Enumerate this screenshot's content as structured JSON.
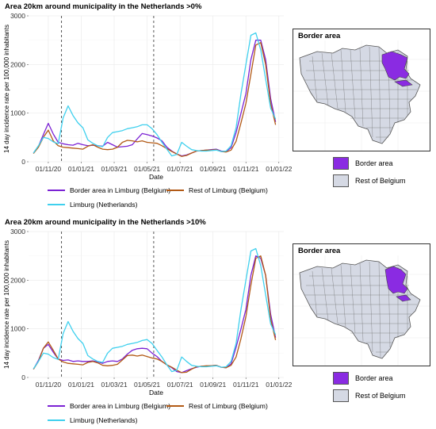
{
  "colors": {
    "border_area": "#7b22d4",
    "rest_limburg": "#b25a16",
    "limburg_nl": "#3fd0ee",
    "map_fill": "#d5d9e4",
    "map_highlight": "#8a2be2"
  },
  "chart_data": [
    {
      "type": "line",
      "title": "Area 20km around municipality in the Netherlands >0%",
      "xlabel": "Date",
      "ylabel": "14 day incidence rate per 100,000 inhabitants",
      "ylim": [
        0,
        3000
      ],
      "yticks": [
        0,
        1000,
        2000,
        3000
      ],
      "xticks": [
        "01/11/20",
        "01/01/21",
        "01/03/21",
        "01/05/21",
        "01/07/21",
        "01/09/21",
        "01/11/21",
        "01/01/22"
      ],
      "xtick_positions": [
        0,
        2,
        4,
        6,
        8,
        10,
        12,
        14
      ],
      "xlim": [
        -1.2,
        14.3
      ],
      "vlines": [
        0.8,
        6.4
      ],
      "x": [
        -0.9,
        -0.6,
        -0.3,
        0,
        0.3,
        0.6,
        0.9,
        1.2,
        1.5,
        1.8,
        2.1,
        2.4,
        2.7,
        3,
        3.3,
        3.6,
        3.9,
        4.2,
        4.5,
        4.8,
        5.1,
        5.4,
        5.7,
        6,
        6.3,
        6.6,
        6.9,
        7.2,
        7.5,
        7.8,
        8.1,
        8.4,
        8.7,
        9,
        9.3,
        9.6,
        9.9,
        10.2,
        10.5,
        10.8,
        11.1,
        11.4,
        11.7,
        12,
        12.3,
        12.6,
        12.9,
        13.2,
        13.5,
        13.8
      ],
      "series": [
        {
          "name": "Border area in Limburg (Belgium)",
          "values": [
            180,
            320,
            560,
            790,
            570,
            400,
            370,
            350,
            340,
            380,
            350,
            330,
            340,
            330,
            320,
            400,
            350,
            300,
            310,
            320,
            350,
            470,
            580,
            560,
            530,
            490,
            430,
            300,
            220,
            160,
            120,
            140,
            180,
            220,
            230,
            240,
            250,
            260,
            220,
            210,
            290,
            600,
            1000,
            1400,
            2100,
            2500,
            2500,
            2100,
            1300,
            820
          ]
        },
        {
          "name": "Rest of Limburg (Belgium)",
          "values": [
            170,
            300,
            500,
            650,
            430,
            330,
            300,
            290,
            280,
            270,
            260,
            320,
            350,
            300,
            260,
            250,
            260,
            300,
            400,
            440,
            430,
            410,
            430,
            400,
            390,
            380,
            330,
            270,
            210,
            160,
            110,
            130,
            180,
            220,
            230,
            240,
            240,
            250,
            210,
            200,
            240,
            420,
            800,
            1200,
            1800,
            2400,
            2450,
            2000,
            1200,
            760
          ]
        },
        {
          "name": "Limburg (Netherlands)",
          "values": [
            180,
            330,
            500,
            480,
            410,
            370,
            900,
            1150,
            950,
            800,
            700,
            450,
            380,
            330,
            310,
            500,
            600,
            620,
            640,
            680,
            700,
            720,
            760,
            760,
            680,
            560,
            400,
            260,
            120,
            150,
            400,
            320,
            250,
            230,
            220,
            220,
            230,
            240,
            210,
            220,
            330,
            700,
            1400,
            2000,
            2600,
            2650,
            2300,
            1700,
            1100,
            880
          ]
        }
      ]
    },
    {
      "type": "line",
      "title": "Area 20km around municipality in the Netherlands >10%",
      "xlabel": "Date",
      "ylabel": "14 day incidence rate per 100,000 inhabitants",
      "ylim": [
        0,
        3000
      ],
      "yticks": [
        0,
        1000,
        2000,
        3000
      ],
      "xticks": [
        "01/11/20",
        "01/01/21",
        "01/03/21",
        "01/05/21",
        "01/07/21",
        "01/09/21",
        "01/11/21",
        "01/01/22"
      ],
      "xtick_positions": [
        0,
        2,
        4,
        6,
        8,
        10,
        12,
        14
      ],
      "xlim": [
        -1.2,
        14.3
      ],
      "vlines": [
        0.8,
        6.4
      ],
      "x": [
        -0.9,
        -0.6,
        -0.3,
        0,
        0.3,
        0.6,
        0.9,
        1.2,
        1.5,
        1.8,
        2.1,
        2.4,
        2.7,
        3,
        3.3,
        3.6,
        3.9,
        4.2,
        4.5,
        4.8,
        5.1,
        5.4,
        5.7,
        6,
        6.3,
        6.6,
        6.9,
        7.2,
        7.5,
        7.8,
        8.1,
        8.4,
        8.7,
        9,
        9.3,
        9.6,
        9.9,
        10.2,
        10.5,
        10.8,
        11.1,
        11.4,
        11.7,
        12,
        12.3,
        12.6,
        12.9,
        13.2,
        13.5,
        13.8
      ],
      "series": [
        {
          "name": "Border area in Limburg (Belgium)",
          "values": [
            170,
            350,
            600,
            680,
            520,
            380,
            350,
            360,
            330,
            340,
            330,
            330,
            340,
            320,
            290,
            330,
            340,
            330,
            380,
            480,
            560,
            590,
            600,
            590,
            500,
            430,
            330,
            260,
            200,
            120,
            100,
            140,
            180,
            210,
            230,
            230,
            240,
            250,
            210,
            200,
            280,
            620,
            1000,
            1400,
            2100,
            2500,
            2450,
            2100,
            1300,
            820
          ]
        },
        {
          "name": "Rest of Limburg (Belgium)",
          "values": [
            170,
            330,
            600,
            730,
            560,
            380,
            320,
            290,
            280,
            270,
            260,
            310,
            330,
            300,
            250,
            240,
            250,
            270,
            360,
            450,
            460,
            440,
            460,
            430,
            400,
            380,
            330,
            260,
            210,
            150,
            100,
            110,
            170,
            220,
            230,
            240,
            240,
            250,
            210,
            200,
            250,
            420,
            800,
            1250,
            1900,
            2450,
            2500,
            2100,
            1200,
            770
          ]
        },
        {
          "name": "Limburg (Netherlands)",
          "values": [
            180,
            330,
            500,
            480,
            410,
            370,
            900,
            1150,
            950,
            800,
            700,
            450,
            380,
            330,
            310,
            500,
            600,
            620,
            640,
            680,
            700,
            720,
            760,
            780,
            700,
            560,
            420,
            260,
            120,
            150,
            420,
            330,
            250,
            230,
            220,
            220,
            230,
            240,
            210,
            220,
            330,
            700,
            1400,
            2000,
            2600,
            2650,
            2300,
            1700,
            1100,
            880
          ]
        }
      ]
    }
  ],
  "legend": {
    "items": [
      "Border area in Limburg (Belgium)",
      "Rest of Limburg (Belgium)",
      "Limburg (Netherlands)"
    ]
  },
  "maps": [
    {
      "title": "Border area",
      "legend": [
        "Border area",
        "Rest of Belgium"
      ]
    },
    {
      "title": "Border area",
      "legend": [
        "Border area",
        "Rest of Belgium"
      ]
    }
  ]
}
